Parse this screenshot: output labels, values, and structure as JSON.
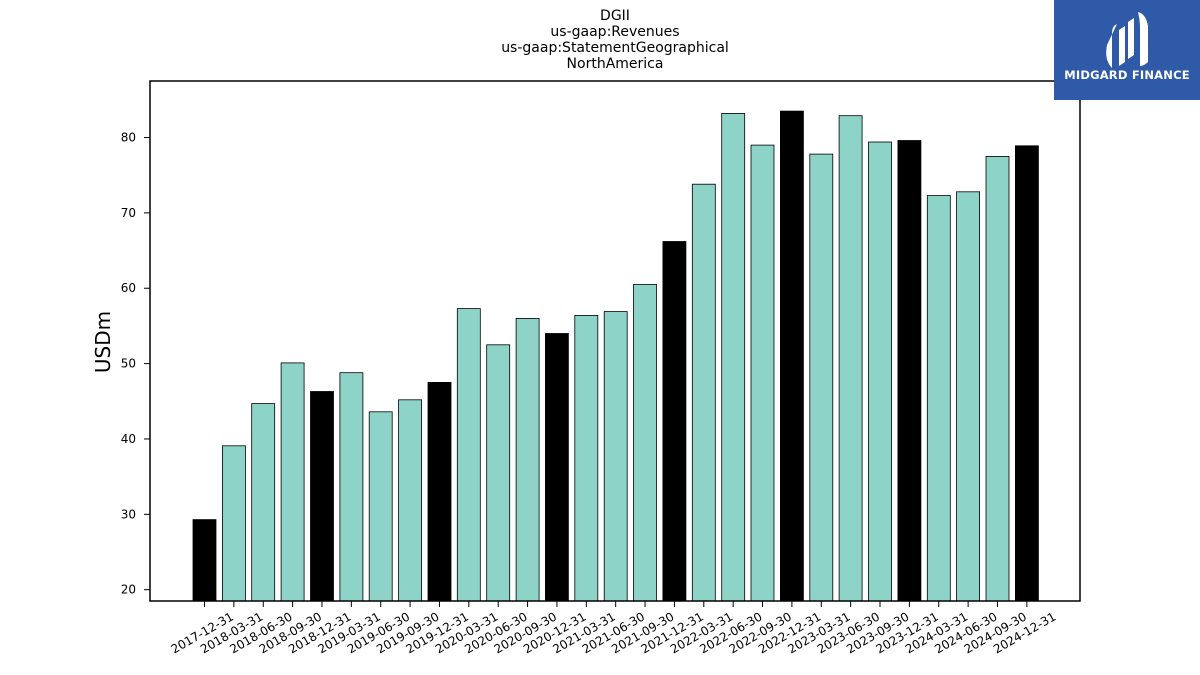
{
  "chart_data": {
    "type": "bar",
    "title_lines": [
      "DGII",
      "us-gaap:Revenues",
      "us-gaap:StatementGeographical",
      "NorthAmerica"
    ],
    "xlabel": "",
    "ylabel": "USDm",
    "ylim": [
      18.5,
      87.5
    ],
    "yticks": [
      20,
      30,
      40,
      50,
      60,
      70,
      80
    ],
    "grid": false,
    "categories": [
      "2017-12-31",
      "2018-03-31",
      "2018-06-30",
      "2018-09-30",
      "2018-12-31",
      "2019-03-31",
      "2019-06-30",
      "2019-09-30",
      "2019-12-31",
      "2020-03-31",
      "2020-06-30",
      "2020-09-30",
      "2020-12-31",
      "2021-03-31",
      "2021-06-30",
      "2021-09-30",
      "2021-12-31",
      "2022-03-31",
      "2022-06-30",
      "2022-09-30",
      "2022-12-31",
      "2023-03-31",
      "2023-06-30",
      "2023-09-30",
      "2023-12-31",
      "2024-03-31",
      "2024-06-30",
      "2024-09-30",
      "2024-12-31"
    ],
    "values": [
      29.3,
      39.1,
      44.7,
      50.1,
      46.3,
      48.8,
      43.6,
      45.2,
      47.5,
      57.3,
      52.5,
      56.0,
      54.0,
      56.4,
      56.9,
      60.5,
      66.2,
      73.8,
      83.2,
      79.0,
      83.5,
      77.8,
      82.9,
      79.4,
      79.6,
      72.3,
      72.8,
      77.5,
      78.9
    ],
    "colors": {
      "quarter": "#8dd3c7",
      "year_end": "#000000",
      "edge": "#000000"
    }
  },
  "logo": {
    "text": "MIDGARD FINANCE",
    "background": "#2f5aa8"
  }
}
